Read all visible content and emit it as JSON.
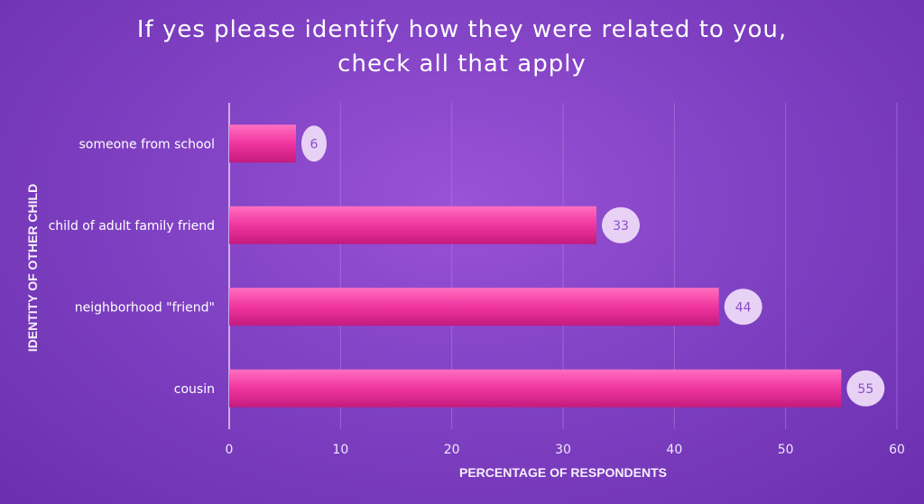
{
  "chart_data": {
    "type": "bar",
    "orientation": "horizontal",
    "title": [
      "If yes please identify how they were related to you,",
      "check all that apply"
    ],
    "xlabel": "PERCENTAGE OF RESPONDENTS",
    "ylabel": "IDENTITY OF OTHER CHILD",
    "categories": [
      "someone from school",
      "child of adult family friend",
      "neighborhood \"friend\"",
      "cousin"
    ],
    "values": [
      6,
      33,
      44,
      55
    ],
    "xlim": [
      0,
      60
    ],
    "xticks": [
      0,
      10,
      20,
      30,
      40,
      50,
      60
    ],
    "grid": true,
    "legend": "none",
    "colors": {
      "bar_top": "#ff6fc0",
      "bar_mid": "#f0359f",
      "bar_bottom": "#c41a7d",
      "label_bubble": "#e7d2f5",
      "label_text": "#8a4cc9",
      "grid": "#b07fe0",
      "axis": "#e6d3f7"
    }
  }
}
